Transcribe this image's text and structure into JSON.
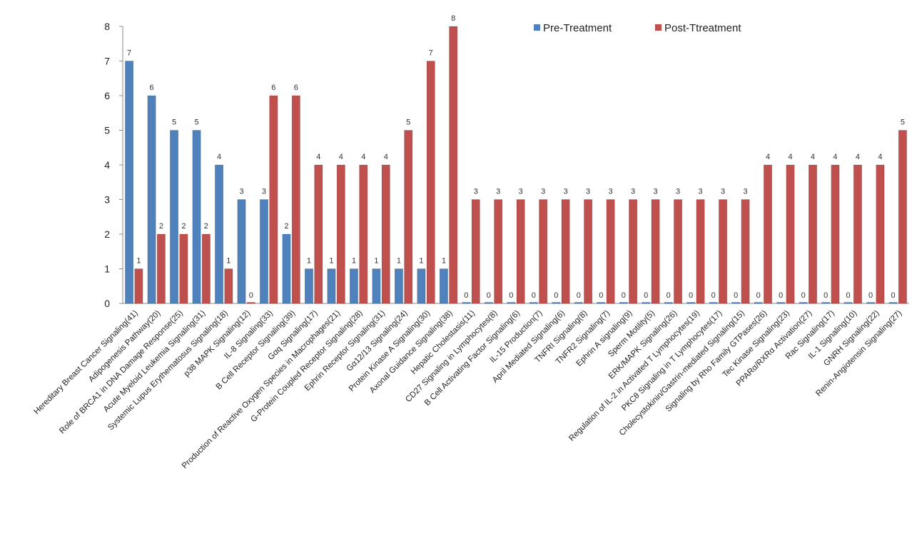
{
  "chart_data": {
    "type": "bar",
    "categories": [
      "Hereditary Breast Cancer Signaling(41)",
      "Adipogenesis Pathway(20)",
      "Role of BRCA1 in DNA Damage Response(25)",
      "Acute Myeloid Leukemia Signaling(31)",
      "Systemic Lupus Erythematosus Signaling(18)",
      "p38 MAPK Signaling(12)",
      "IL-8 Signaling(33)",
      "B Cell Receptor Signaling(39)",
      "Gαq Signaling(17)",
      "Production of Reactive Oxygen Species in Macrophages(21)",
      "G-Protein Coupled Receptor Signaling(28)",
      "Ephrin Receptor Signaling(31)",
      "Gα12/13 Signaling(24)",
      "Protein Kinase A Signaling(30)",
      "Axonal Guidance Signaling(38)",
      "Hepatic Cholestasis(11)",
      "CD27 Signaling in Lymphocytes(8)",
      "B Cell Activating Factor Signaling(6)",
      "IL-15 Production(7)",
      "April Mediated Signaling(6)",
      "TNFRI Signaling(8)",
      "TNFR2 Signaling(7)",
      "Ephrin A signaling(9)",
      "Sperm Motility(5)",
      "ERK/MAPK Signaling(26)",
      "Regulation of IL-2 in Activated T Lymphocytes(19)",
      "PKCθ Signaling in T Lymphocytes(17)",
      "Cholecystokinin/Gastrin-mediated Signaling(15)",
      "Signaling by Rho Family GTPases(26)",
      "Tec Kinase Signaling(23)",
      "PPARα/RXRα Activation(27)",
      "Rac Signaling(17)",
      "IL-1 Signaling(10)",
      "GNRH Signaling(22)",
      "Renin-Angiotensin Signaling(27)"
    ],
    "series": [
      {
        "name": "Pre-Treatment",
        "color": "#4f81bd",
        "values": [
          7,
          6,
          5,
          5,
          4,
          3,
          3,
          2,
          1,
          1,
          1,
          1,
          1,
          1,
          1,
          0,
          0,
          0,
          0,
          0,
          0,
          0,
          0,
          0,
          0,
          0,
          0,
          0,
          0,
          0,
          0,
          0,
          0,
          0,
          0
        ]
      },
      {
        "name": "Post-Ttreatment",
        "color": "#c0504d",
        "values": [
          1,
          2,
          2,
          2,
          1,
          0,
          6,
          6,
          4,
          4,
          4,
          4,
          5,
          7,
          8,
          3,
          3,
          3,
          3,
          3,
          3,
          3,
          3,
          3,
          3,
          3,
          3,
          3,
          4,
          4,
          4,
          4,
          4,
          4,
          5
        ]
      }
    ],
    "ylim": [
      0,
      8
    ],
    "yticks": [
      0,
      1,
      2,
      3,
      4,
      5,
      6,
      7,
      8
    ],
    "grid": false,
    "legend": "top"
  }
}
